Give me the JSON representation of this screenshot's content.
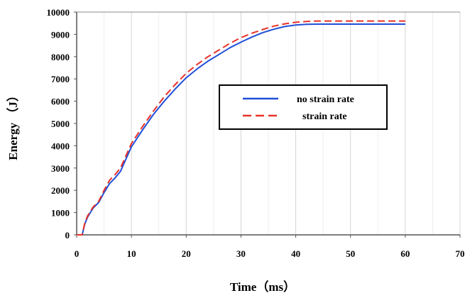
{
  "chart_data": {
    "type": "line",
    "xlabel": "Time（ms）",
    "ylabel": "Energy （J）",
    "xlim": [
      0,
      70
    ],
    "ylim": [
      0,
      10000
    ],
    "x_ticks": [
      0,
      10,
      20,
      30,
      40,
      50,
      60,
      70
    ],
    "y_ticks": [
      0,
      1000,
      2000,
      3000,
      4000,
      5000,
      6000,
      7000,
      8000,
      9000,
      10000
    ],
    "grid": "vertical",
    "legend_position": "right-middle",
    "series": [
      {
        "name": "no strain rate",
        "color": "#1f4fd6",
        "style": "solid",
        "x": [
          0,
          1,
          1.5,
          2,
          3,
          4,
          5,
          6,
          7,
          8,
          9,
          10,
          12,
          14,
          16,
          18,
          20,
          22,
          24,
          26,
          28,
          30,
          32,
          34,
          36,
          38,
          40,
          42,
          44,
          46,
          48,
          50,
          55,
          60
        ],
        "y": [
          0,
          0,
          500,
          800,
          1200,
          1450,
          1900,
          2300,
          2550,
          2850,
          3400,
          3950,
          4700,
          5400,
          6000,
          6550,
          7050,
          7450,
          7800,
          8100,
          8400,
          8650,
          8880,
          9080,
          9230,
          9350,
          9420,
          9450,
          9460,
          9460,
          9460,
          9460,
          9460,
          9460
        ]
      },
      {
        "name": "strain rate",
        "color": "#e8322a",
        "style": "dashed",
        "x": [
          0,
          1,
          1.5,
          2,
          3,
          4,
          5,
          6,
          7,
          8,
          9,
          10,
          12,
          14,
          16,
          18,
          20,
          22,
          24,
          26,
          28,
          30,
          32,
          34,
          36,
          38,
          40,
          42,
          44,
          46,
          48,
          50,
          55,
          60
        ],
        "y": [
          0,
          0,
          550,
          850,
          1250,
          1500,
          2000,
          2450,
          2700,
          3000,
          3550,
          4100,
          4850,
          5550,
          6200,
          6750,
          7250,
          7650,
          8000,
          8300,
          8600,
          8850,
          9050,
          9220,
          9370,
          9470,
          9540,
          9580,
          9600,
          9600,
          9600,
          9600,
          9600,
          9600
        ]
      }
    ]
  }
}
